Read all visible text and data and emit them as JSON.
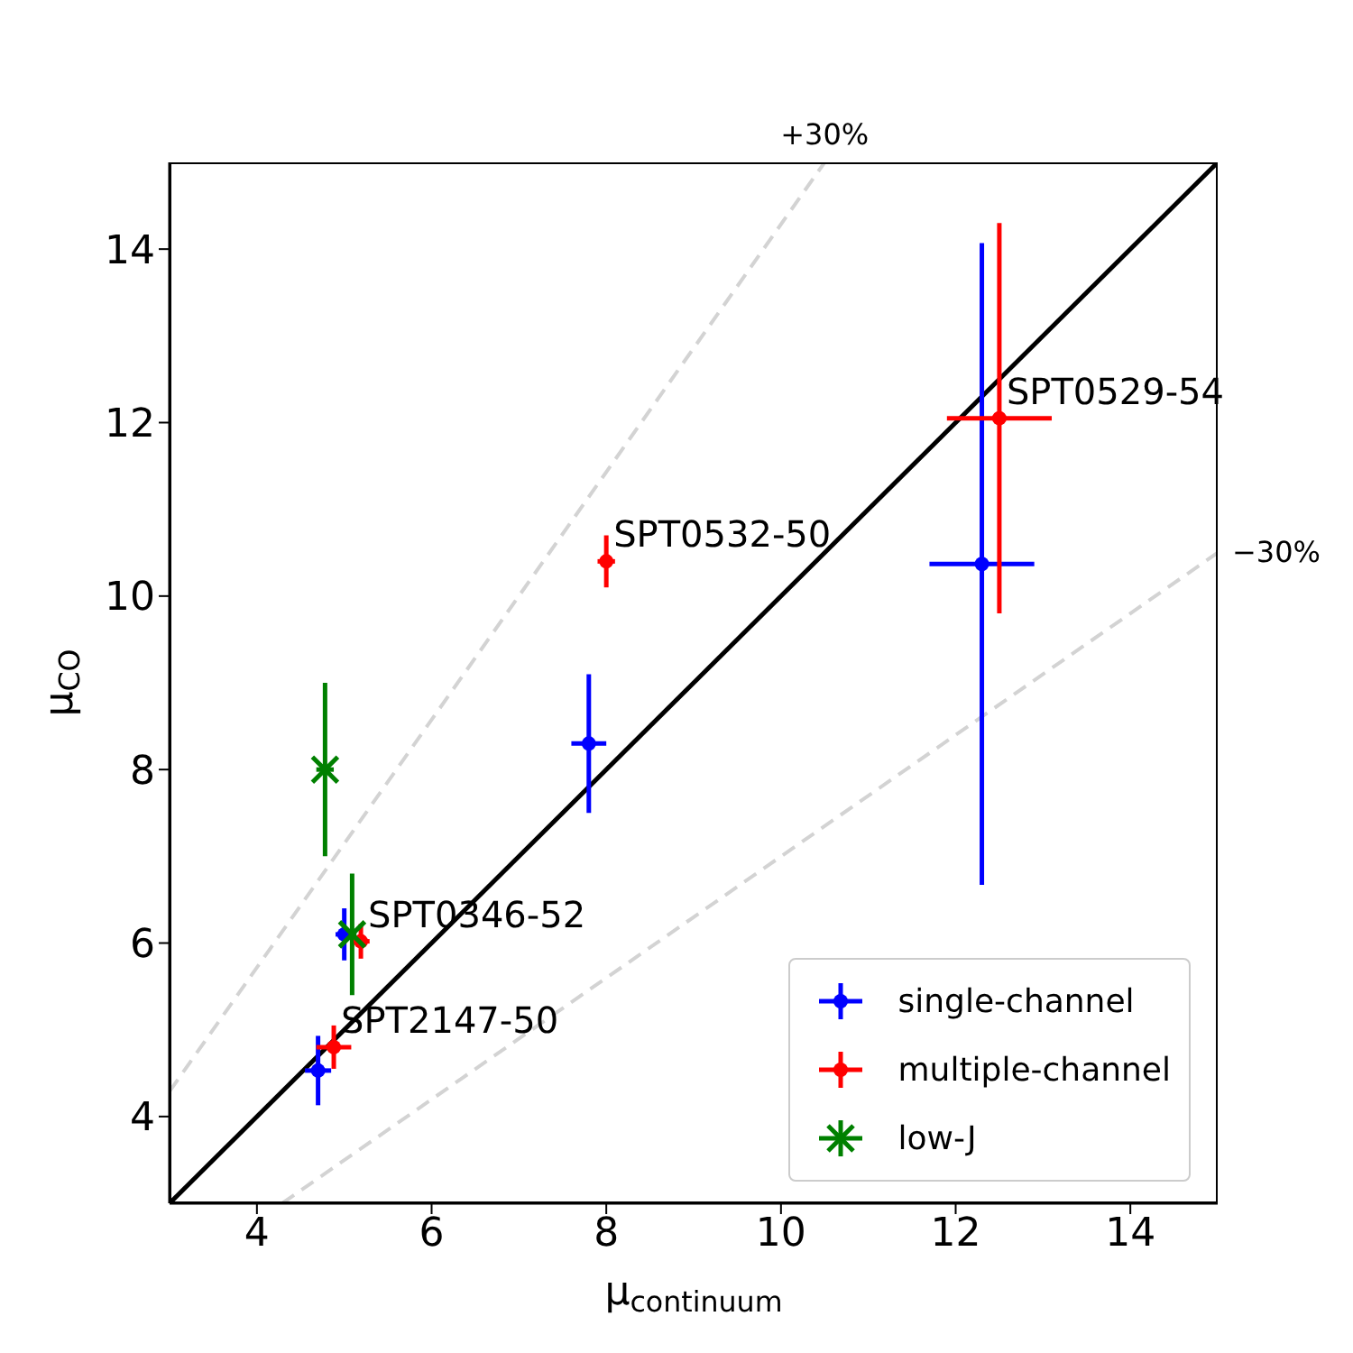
{
  "chart_data": {
    "type": "scatter",
    "xlabel": "μ$_{continuum}$",
    "ylabel": "μ$_{CO}$",
    "xlim": [
      3,
      15
    ],
    "ylim": [
      3,
      15
    ],
    "xticks": [
      4,
      6,
      8,
      10,
      12,
      14
    ],
    "yticks": [
      4,
      6,
      8,
      10,
      12,
      14
    ],
    "legend": "bottom right",
    "series": [
      {
        "name": "single-channel",
        "color": "#0000ff",
        "x": [
          4.7,
          5.0,
          7.8,
          12.3
        ],
        "values": [
          4.53,
          6.1,
          8.3,
          10.37
        ],
        "errors": [
          0.4,
          0.3,
          0.8,
          3.7
        ],
        "xerrors": [
          0.15,
          0.1,
          0.2,
          0.6
        ]
      },
      {
        "name": "multiple-channel",
        "color": "#ff0000",
        "x": [
          4.88,
          5.19,
          8.0,
          12.5
        ],
        "values": [
          4.8,
          6.02,
          10.4,
          12.05
        ],
        "errors": [
          0.25,
          0.2,
          0.3,
          2.25
        ],
        "xerrors": [
          0.2,
          0.1,
          0.1,
          0.6
        ]
      },
      {
        "name": "low-J",
        "color": "#008000",
        "marker": "cross",
        "x": [
          4.78,
          5.09
        ],
        "values": [
          8.0,
          6.1
        ],
        "errors": [
          1.0,
          0.7
        ],
        "xerrors": [
          0.1,
          0.05
        ]
      },
      {
        "type": "line",
        "color": "#000000",
        "line_style": "solid",
        "x": [
          3,
          15
        ],
        "values": [
          3,
          15
        ]
      },
      {
        "type": "line",
        "color": "#d3d3d3",
        "line_style": "dashed",
        "x": [
          3,
          10.5
        ],
        "values": [
          4.29,
          15
        ]
      },
      {
        "type": "line",
        "color": "#d3d3d3",
        "line_style": "dashed",
        "x": [
          4.29,
          15
        ],
        "values": [
          3,
          10.5
        ]
      }
    ],
    "annotations": [
      {
        "text": "+30%",
        "x": 10.5,
        "y": 15
      },
      {
        "text": "−30%",
        "x": 15,
        "y": 10.5
      },
      {
        "text": "SPT0529-54",
        "x": 12.5,
        "y": 12.05
      },
      {
        "text": "SPT0532-50",
        "x": 8.0,
        "y": 10.4
      },
      {
        "text": "SPT0346-52",
        "x": 5.19,
        "y": 6.02
      },
      {
        "text": "SPT2147-50",
        "x": 4.88,
        "y": 4.8
      }
    ]
  }
}
